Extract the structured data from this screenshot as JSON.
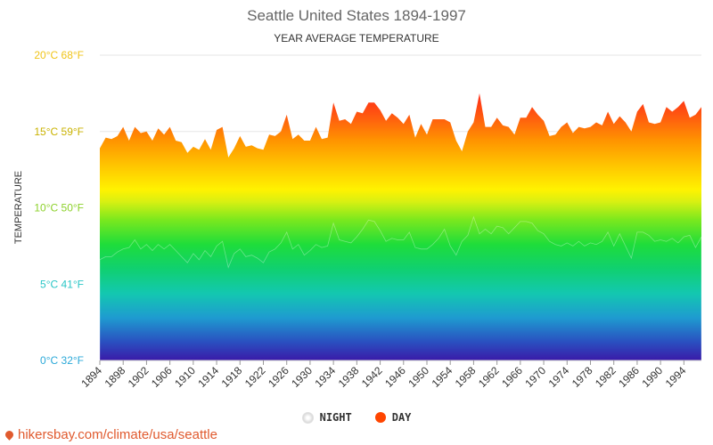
{
  "title": "Seattle United States 1894-1997",
  "subtitle": "YEAR AVERAGE TEMPERATURE",
  "legend": {
    "night": "NIGHT",
    "day": "DAY"
  },
  "watermark": "hikersbay.com/climate/usa/seattle",
  "colors": {
    "night_marker": "#e0e0e0",
    "day_marker": "#ff4500",
    "watermark": "#e05a2e"
  },
  "chart_data": {
    "type": "area",
    "ylabel": "TEMPERATURE",
    "ylim": [
      0,
      20
    ],
    "y_ticks": [
      {
        "value": 0,
        "label": "0°C 32°F",
        "color": "#2aa8d8"
      },
      {
        "value": 5,
        "label": "5°C 41°F",
        "color": "#29c6c6"
      },
      {
        "value": 10,
        "label": "10°C 50°F",
        "color": "#8cd12a"
      },
      {
        "value": 15,
        "label": "15°C 59°F",
        "color": "#c9b200"
      },
      {
        "value": 20,
        "label": "20°C 68°F",
        "color": "#f0c419"
      }
    ],
    "x_tick_labels": [
      "1894",
      "1898",
      "1902",
      "1906",
      "1910",
      "1914",
      "1918",
      "1922",
      "1926",
      "1930",
      "1934",
      "1938",
      "1942",
      "1946",
      "1950",
      "1954",
      "1958",
      "1962",
      "1966",
      "1970",
      "1974",
      "1978",
      "1982",
      "1986",
      "1990",
      "1994"
    ],
    "x": [
      1894,
      1895,
      1896,
      1897,
      1898,
      1899,
      1900,
      1901,
      1902,
      1903,
      1904,
      1905,
      1906,
      1907,
      1908,
      1909,
      1910,
      1911,
      1912,
      1913,
      1914,
      1915,
      1916,
      1917,
      1918,
      1919,
      1920,
      1921,
      1922,
      1923,
      1924,
      1925,
      1926,
      1927,
      1928,
      1929,
      1930,
      1931,
      1932,
      1933,
      1934,
      1935,
      1936,
      1937,
      1938,
      1939,
      1940,
      1941,
      1942,
      1943,
      1944,
      1945,
      1946,
      1947,
      1948,
      1949,
      1950,
      1951,
      1952,
      1953,
      1954,
      1955,
      1956,
      1957,
      1958,
      1959,
      1960,
      1961,
      1962,
      1963,
      1964,
      1965,
      1966,
      1967,
      1968,
      1969,
      1970,
      1971,
      1972,
      1973,
      1974,
      1975,
      1976,
      1977,
      1978,
      1979,
      1980,
      1981,
      1982,
      1983,
      1984,
      1985,
      1986,
      1987,
      1988,
      1989,
      1990,
      1991,
      1992,
      1993,
      1994,
      1995,
      1996,
      1997
    ],
    "series": [
      {
        "name": "DAY",
        "values": [
          13.9,
          14.6,
          14.5,
          14.7,
          15.3,
          14.4,
          15.3,
          14.9,
          15.0,
          14.4,
          15.2,
          14.8,
          15.3,
          14.4,
          14.3,
          13.6,
          14.0,
          13.8,
          14.5,
          13.8,
          15.1,
          15.3,
          13.3,
          13.9,
          14.7,
          14.0,
          14.1,
          13.9,
          13.8,
          14.8,
          14.7,
          15.0,
          16.1,
          14.5,
          14.8,
          14.4,
          14.4,
          15.3,
          14.5,
          14.6,
          16.9,
          15.7,
          15.8,
          15.5,
          16.3,
          16.2,
          16.9,
          16.9,
          16.4,
          15.7,
          16.2,
          15.9,
          15.5,
          16.1,
          14.6,
          15.5,
          14.8,
          15.8,
          15.8,
          15.8,
          15.6,
          14.4,
          13.7,
          15.0,
          15.6,
          17.5,
          15.3,
          15.3,
          15.9,
          15.4,
          15.3,
          14.8,
          15.9,
          15.9,
          16.6,
          16.1,
          15.7,
          14.7,
          14.8,
          15.3,
          15.6,
          14.9,
          15.3,
          15.2,
          15.3,
          15.6,
          15.4,
          16.3,
          15.5,
          16.0,
          15.6,
          15.0,
          16.3,
          16.8,
          15.6,
          15.5,
          15.6,
          16.6,
          16.3,
          16.6,
          17.0,
          15.9,
          16.1,
          16.6
        ]
      },
      {
        "name": "NIGHT",
        "values": [
          6.6,
          6.8,
          6.8,
          7.1,
          7.3,
          7.4,
          7.9,
          7.3,
          7.6,
          7.2,
          7.6,
          7.3,
          7.6,
          7.2,
          6.8,
          6.4,
          7.0,
          6.6,
          7.2,
          6.8,
          7.5,
          7.8,
          6.1,
          7.0,
          7.3,
          6.8,
          6.9,
          6.7,
          6.4,
          7.1,
          7.3,
          7.7,
          8.4,
          7.3,
          7.6,
          6.9,
          7.2,
          7.6,
          7.4,
          7.5,
          9.0,
          7.9,
          7.8,
          7.7,
          8.1,
          8.6,
          9.2,
          9.1,
          8.5,
          7.8,
          8.0,
          7.9,
          7.9,
          8.4,
          7.4,
          7.3,
          7.3,
          7.6,
          8.0,
          8.6,
          7.5,
          6.9,
          7.8,
          8.2,
          9.4,
          8.3,
          8.6,
          8.3,
          8.8,
          8.7,
          8.3,
          8.7,
          9.1,
          9.1,
          9.0,
          8.5,
          8.3,
          7.8,
          7.6,
          7.5,
          7.7,
          7.5,
          7.8,
          7.5,
          7.7,
          7.6,
          7.8,
          8.4,
          7.5,
          8.3,
          7.5,
          6.7,
          8.4,
          8.4,
          8.2,
          7.8,
          7.9,
          7.8,
          8.0,
          7.7,
          8.1,
          8.2,
          7.4,
          8.1
        ]
      }
    ]
  }
}
